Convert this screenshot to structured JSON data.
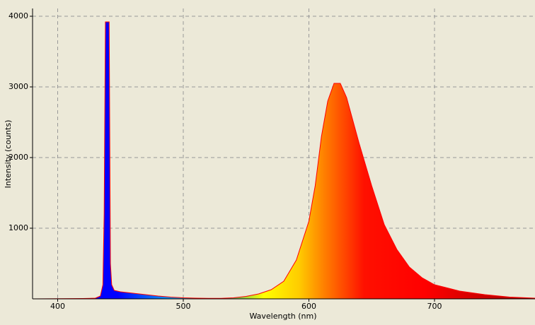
{
  "chart_data": {
    "type": "area",
    "x_label": "Wavelength (nm)",
    "y_label": "Intensity (counts)",
    "x": [
      380,
      400,
      420,
      430,
      434,
      436,
      437,
      438,
      441,
      442,
      443,
      445,
      450,
      460,
      470,
      480,
      490,
      500,
      510,
      520,
      530,
      540,
      550,
      560,
      570,
      580,
      590,
      600,
      605,
      610,
      615,
      620,
      625,
      630,
      640,
      650,
      660,
      670,
      680,
      690,
      700,
      720,
      740,
      760,
      780
    ],
    "y": [
      0,
      2,
      5,
      10,
      40,
      200,
      1200,
      3920,
      3920,
      500,
      200,
      120,
      100,
      80,
      60,
      40,
      25,
      15,
      10,
      8,
      8,
      15,
      35,
      70,
      130,
      250,
      550,
      1100,
      1600,
      2300,
      2800,
      3050,
      3050,
      2850,
      2200,
      1600,
      1050,
      700,
      450,
      300,
      200,
      110,
      60,
      25,
      10
    ],
    "color": "#ff0000",
    "xlim": [
      380,
      780
    ],
    "ylim": [
      0,
      4110
    ],
    "xticks": [
      400,
      500,
      600,
      700
    ],
    "yticks": [
      1000,
      2000,
      3000,
      4000
    ],
    "grid": true
  }
}
